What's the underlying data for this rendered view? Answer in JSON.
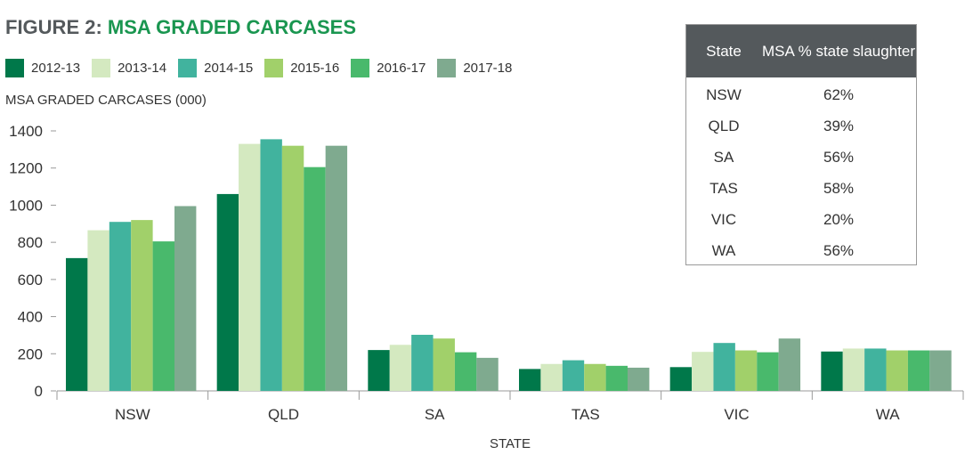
{
  "figure": {
    "title_prefix": "FIGURE 2: ",
    "title_main": "MSA GRADED CARCASES"
  },
  "table": {
    "header_state": "State",
    "header_pct": "MSA % state slaughter",
    "rows": [
      {
        "state": "NSW",
        "pct": "62%"
      },
      {
        "state": "QLD",
        "pct": "39%"
      },
      {
        "state": "SA",
        "pct": "56%"
      },
      {
        "state": "TAS",
        "pct": "58%"
      },
      {
        "state": "VIC",
        "pct": "20%"
      },
      {
        "state": "WA",
        "pct": "56%"
      }
    ]
  },
  "chart_data": {
    "type": "bar",
    "title": "FIGURE 2: MSA GRADED CARCASES",
    "xlabel": "STATE",
    "ylabel": "MSA GRADED CARCASES (000)",
    "ylim": [
      0,
      1400
    ],
    "yticks": [
      0,
      200,
      400,
      600,
      800,
      1000,
      1200,
      1400
    ],
    "ytick_labels": [
      "0",
      "200",
      "400",
      "600",
      "800",
      "1000",
      "1200",
      "1400"
    ],
    "grid": false,
    "legend_position": "top-left",
    "categories": [
      "NSW",
      "QLD",
      "SA",
      "TAS",
      "VIC",
      "WA"
    ],
    "series": [
      {
        "name": "2012-13",
        "color": "#00784a",
        "values": [
          715,
          1060,
          220,
          118,
          128,
          212
        ]
      },
      {
        "name": "2013-14",
        "color": "#d4e9c0",
        "values": [
          865,
          1330,
          248,
          145,
          210,
          228
        ]
      },
      {
        "name": "2014-15",
        "color": "#41b39e",
        "values": [
          910,
          1355,
          302,
          165,
          258,
          228
        ]
      },
      {
        "name": "2015-16",
        "color": "#a1d06a",
        "values": [
          920,
          1320,
          282,
          145,
          218,
          218
        ]
      },
      {
        "name": "2016-17",
        "color": "#49b96c",
        "values": [
          805,
          1205,
          208,
          135,
          208,
          218
        ]
      },
      {
        "name": "2017-18",
        "color": "#7faa8f",
        "values": [
          995,
          1320,
          178,
          125,
          282,
          218
        ]
      }
    ]
  }
}
